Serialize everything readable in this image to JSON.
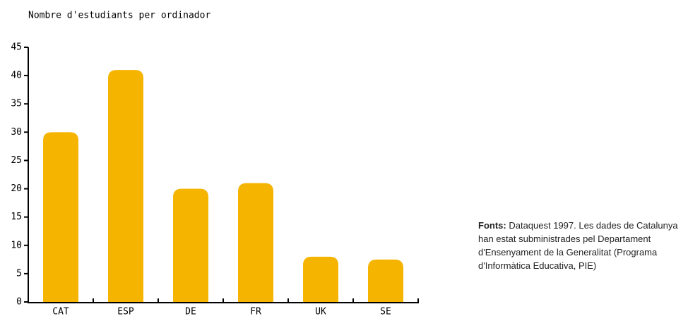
{
  "chart_data": {
    "type": "bar",
    "title": "Nombre d'estudiants per ordinador",
    "categories": [
      "CAT",
      "ESP",
      "DE",
      "FR",
      "UK",
      "SE"
    ],
    "values": [
      30,
      41,
      20,
      21,
      8,
      7.5
    ],
    "color": "#f5b400",
    "ylim": [
      0,
      45
    ],
    "yticks": [
      0,
      5,
      10,
      15,
      20,
      25,
      30,
      35,
      40,
      45
    ],
    "note_label": "Fonts:",
    "note": "Dataquest 1997. Les dades de Catalunya han estat subministrades pel Departament d'Ensenyament de la Generalitat (Programa d'Informàtica Educativa, PIE)"
  }
}
